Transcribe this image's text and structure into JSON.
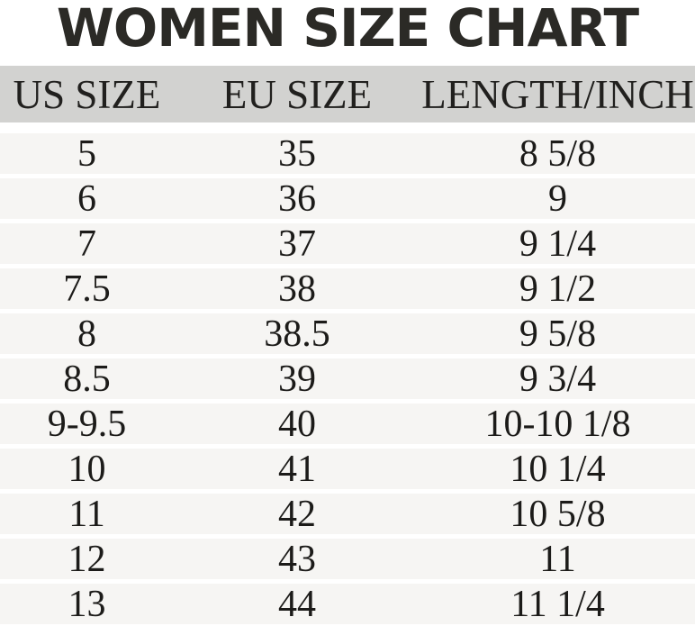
{
  "chart_data": {
    "type": "table",
    "title": "WOMEN SIZE CHART",
    "columns": [
      "US SIZE",
      "EU SIZE",
      "LENGTH/INCH"
    ],
    "rows": [
      [
        "5",
        "35",
        "8 5/8"
      ],
      [
        "6",
        "36",
        "9"
      ],
      [
        "7",
        "37",
        "9 1/4"
      ],
      [
        "7.5",
        "38",
        "9 1/2"
      ],
      [
        "8",
        "38.5",
        "9 5/8"
      ],
      [
        "8.5",
        "39",
        "9 3/4"
      ],
      [
        "9-9.5",
        "40",
        "10-10 1/8"
      ],
      [
        "10",
        "41",
        "10 1/4"
      ],
      [
        "11",
        "42",
        "10 5/8"
      ],
      [
        "12",
        "43",
        "11"
      ],
      [
        "13",
        "44",
        "11 1/4"
      ]
    ]
  },
  "colors": {
    "title_text": "#2b2a26",
    "header_background": "#d2d2d0",
    "header_text": "#21201e",
    "row_background": "#f6f5f3",
    "row_text": "#1c1b19",
    "page_background": "#ffffff"
  }
}
